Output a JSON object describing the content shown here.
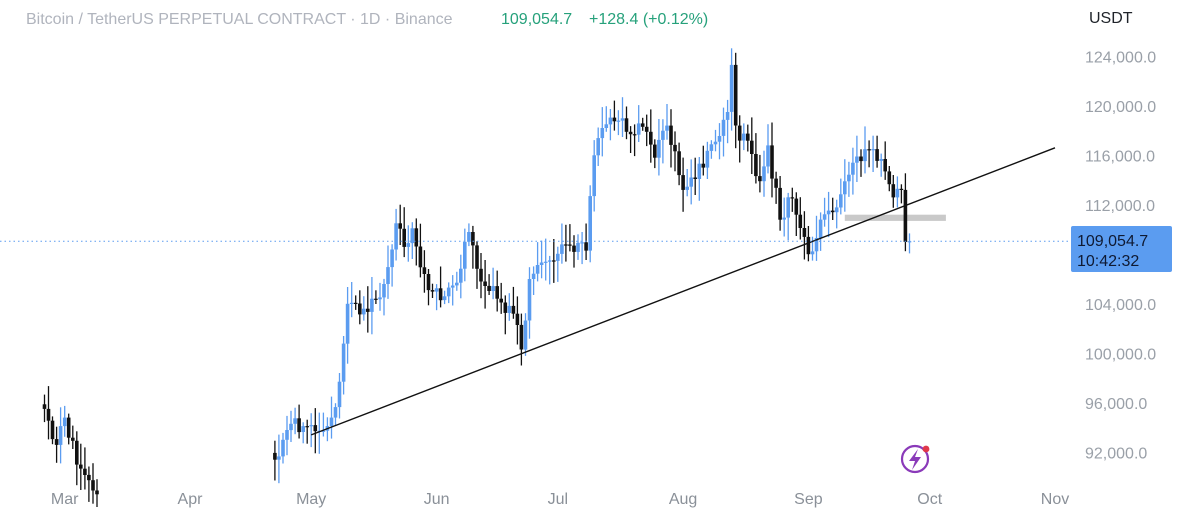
{
  "header": {
    "title": "Bitcoin / TetherUS PERPETUAL CONTRACT · 1D · Binance",
    "last_price": "109,054.7",
    "change": "+128.4 (+0.12%)"
  },
  "price_tag": {
    "price": "109,054.7",
    "countdown": "10:42:32"
  },
  "chart_data": {
    "type": "candlestick",
    "title": "Bitcoin / TetherUS PERPETUAL CONTRACT · 1D · Binance",
    "unit_label": "USDT",
    "ylim": [
      90000,
      125800
    ],
    "y_ticks": [
      {
        "value": 124000,
        "label": "124,000.0"
      },
      {
        "value": 120000,
        "label": "120,000.0"
      },
      {
        "value": 116000,
        "label": "116,000.0"
      },
      {
        "value": 112000,
        "label": "112,000.0"
      },
      {
        "value": 104000,
        "label": "104,000.0"
      },
      {
        "value": 100000,
        "label": "100,000.0"
      },
      {
        "value": 96000,
        "label": "96,000.0"
      },
      {
        "value": 92000,
        "label": "92,000.0"
      }
    ],
    "x_ticks": [
      "Mar",
      "Apr",
      "May",
      "Jun",
      "Jul",
      "Aug",
      "Sep",
      "Oct",
      "Nov"
    ],
    "last_price": 109054.7,
    "colors": {
      "up": "#5b9cf0",
      "down": "#111111",
      "last_line": "#5b9cf0",
      "support_zone": "#c9c9c9"
    },
    "trendline": {
      "from": [
        "2025-05-01",
        93400
      ],
      "to": [
        "2025-11-01",
        116600
      ]
    },
    "support_zone": {
      "from": "2025-09-10",
      "to": "2025-10-05",
      "low": 110700,
      "high": 111200
    },
    "anchors": [
      [
        "2025-02-24",
        95500
      ],
      [
        "2025-02-27",
        92600
      ],
      [
        "2025-03-01",
        94800
      ],
      [
        "2025-03-04",
        91000
      ],
      [
        "2025-03-09",
        88600
      ],
      [
        "2025-04-22",
        91400
      ],
      [
        "2025-04-26",
        94300
      ],
      [
        "2025-05-02",
        93700
      ],
      [
        "2025-05-06",
        94800
      ],
      [
        "2025-05-08",
        97700
      ],
      [
        "2025-05-10",
        104000
      ],
      [
        "2025-05-14",
        103600
      ],
      [
        "2025-05-19",
        105600
      ],
      [
        "2025-05-22",
        110500
      ],
      [
        "2025-05-24",
        108600
      ],
      [
        "2025-05-26",
        110100
      ],
      [
        "2025-05-30",
        105100
      ],
      [
        "2025-06-03",
        104600
      ],
      [
        "2025-06-06",
        105700
      ],
      [
        "2025-06-09",
        109800
      ],
      [
        "2025-06-12",
        105800
      ],
      [
        "2025-06-17",
        104100
      ],
      [
        "2025-06-20",
        103200
      ],
      [
        "2025-06-22",
        100300
      ],
      [
        "2025-06-24",
        106000
      ],
      [
        "2025-06-28",
        107400
      ],
      [
        "2025-07-02",
        108800
      ],
      [
        "2025-07-04",
        108700
      ],
      [
        "2025-07-08",
        108300
      ],
      [
        "2025-07-10",
        116000
      ],
      [
        "2025-07-13",
        118500
      ],
      [
        "2025-07-16",
        118800
      ],
      [
        "2025-07-19",
        117700
      ],
      [
        "2025-07-22",
        118300
      ],
      [
        "2025-07-25",
        115800
      ],
      [
        "2025-07-28",
        118400
      ],
      [
        "2025-08-01",
        113200
      ],
      [
        "2025-08-03",
        114200
      ],
      [
        "2025-08-06",
        115000
      ],
      [
        "2025-08-09",
        117100
      ],
      [
        "2025-08-12",
        119500
      ],
      [
        "2025-08-13",
        123300
      ],
      [
        "2025-08-14",
        118400
      ],
      [
        "2025-08-18",
        116100
      ],
      [
        "2025-08-20",
        113900
      ],
      [
        "2025-08-22",
        116800
      ],
      [
        "2025-08-25",
        110800
      ],
      [
        "2025-08-28",
        112500
      ],
      [
        "2025-09-01",
        108000
      ],
      [
        "2025-09-04",
        110800
      ],
      [
        "2025-09-07",
        111400
      ],
      [
        "2025-09-10",
        113900
      ],
      [
        "2025-09-13",
        115900
      ],
      [
        "2025-09-17",
        116500
      ],
      [
        "2025-09-19",
        115700
      ],
      [
        "2025-09-22",
        112600
      ],
      [
        "2025-09-24",
        113200
      ],
      [
        "2025-09-25",
        109000
      ],
      [
        "2025-09-26",
        109054.7
      ]
    ]
  }
}
